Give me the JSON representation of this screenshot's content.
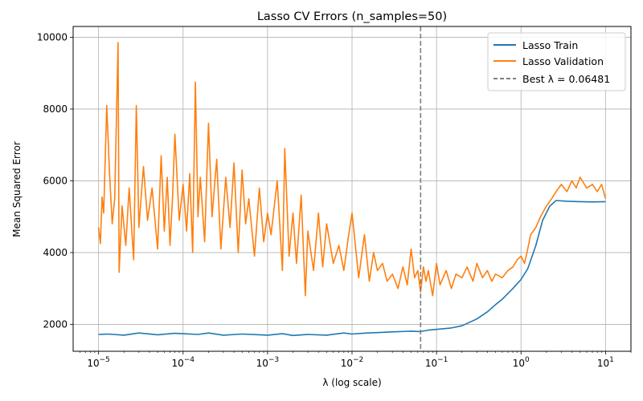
{
  "chart_data": {
    "type": "line",
    "title": "Lasso CV Errors (n_samples=50)",
    "xlabel": "λ (log scale)",
    "ylabel": "Mean Squared Error",
    "xscale": "log",
    "xlim": [
      5e-06,
      20
    ],
    "ylim": [
      1250,
      10300
    ],
    "grid": true,
    "legend_position": "top-right",
    "x_ticks": [
      {
        "value": 1e-05,
        "base": "10",
        "exp": "−5"
      },
      {
        "value": 0.0001,
        "base": "10",
        "exp": "−4"
      },
      {
        "value": 0.001,
        "base": "10",
        "exp": "−3"
      },
      {
        "value": 0.01,
        "base": "10",
        "exp": "−2"
      },
      {
        "value": 0.1,
        "base": "10",
        "exp": "−1"
      },
      {
        "value": 1,
        "base": "10",
        "exp": "0"
      },
      {
        "value": 10,
        "base": "10",
        "exp": "1"
      }
    ],
    "y_ticks": [
      {
        "value": 2000,
        "label": "2000"
      },
      {
        "value": 4000,
        "label": "4000"
      },
      {
        "value": 6000,
        "label": "6000"
      },
      {
        "value": 8000,
        "label": "8000"
      },
      {
        "value": 10000,
        "label": "10000"
      }
    ],
    "best_lambda": {
      "value": 0.06481,
      "label": "Best λ = 0.06481",
      "color": "#7f7f7f"
    },
    "series": [
      {
        "name": "Lasso Train",
        "color": "#1f77b4",
        "points": [
          [
            1e-05,
            1720
          ],
          [
            1.3e-05,
            1730
          ],
          [
            2e-05,
            1700
          ],
          [
            3e-05,
            1760
          ],
          [
            5e-05,
            1710
          ],
          [
            8e-05,
            1750
          ],
          [
            0.0001,
            1740
          ],
          [
            0.00015,
            1720
          ],
          [
            0.0002,
            1760
          ],
          [
            0.0003,
            1700
          ],
          [
            0.0005,
            1730
          ],
          [
            0.0008,
            1710
          ],
          [
            0.001,
            1700
          ],
          [
            0.0015,
            1740
          ],
          [
            0.002,
            1690
          ],
          [
            0.003,
            1720
          ],
          [
            0.005,
            1700
          ],
          [
            0.008,
            1760
          ],
          [
            0.01,
            1730
          ],
          [
            0.015,
            1760
          ],
          [
            0.02,
            1770
          ],
          [
            0.03,
            1790
          ],
          [
            0.05,
            1810
          ],
          [
            0.065,
            1800
          ],
          [
            0.08,
            1840
          ],
          [
            0.1,
            1860
          ],
          [
            0.15,
            1900
          ],
          [
            0.2,
            1960
          ],
          [
            0.3,
            2150
          ],
          [
            0.4,
            2350
          ],
          [
            0.5,
            2550
          ],
          [
            0.6,
            2700
          ],
          [
            0.8,
            3000
          ],
          [
            1.0,
            3250
          ],
          [
            1.2,
            3550
          ],
          [
            1.5,
            4200
          ],
          [
            1.8,
            4900
          ],
          [
            2.2,
            5300
          ],
          [
            2.6,
            5450
          ],
          [
            3.5,
            5430
          ],
          [
            5,
            5420
          ],
          [
            7,
            5410
          ],
          [
            10,
            5420
          ]
        ]
      },
      {
        "name": "Lasso Validation",
        "color": "#ff7f0e",
        "points": [
          [
            1e-05,
            4700
          ],
          [
            1.05e-05,
            4250
          ],
          [
            1.1e-05,
            5550
          ],
          [
            1.15e-05,
            5100
          ],
          [
            1.25e-05,
            8100
          ],
          [
            1.35e-05,
            6200
          ],
          [
            1.45e-05,
            4800
          ],
          [
            1.55e-05,
            5500
          ],
          [
            1.7e-05,
            9850
          ],
          [
            1.75e-05,
            3450
          ],
          [
            1.9e-05,
            5300
          ],
          [
            2.1e-05,
            4200
          ],
          [
            2.3e-05,
            5800
          ],
          [
            2.6e-05,
            3800
          ],
          [
            2.8e-05,
            8100
          ],
          [
            3e-05,
            4700
          ],
          [
            3.4e-05,
            6400
          ],
          [
            3.8e-05,
            4900
          ],
          [
            4.3e-05,
            5800
          ],
          [
            5e-05,
            4100
          ],
          [
            5.5e-05,
            6700
          ],
          [
            6e-05,
            4600
          ],
          [
            6.5e-05,
            6100
          ],
          [
            7e-05,
            4200
          ],
          [
            7.5e-05,
            5500
          ],
          [
            8e-05,
            7300
          ],
          [
            9e-05,
            4900
          ],
          [
            0.0001,
            5900
          ],
          [
            0.00011,
            4600
          ],
          [
            0.00012,
            6200
          ],
          [
            0.00013,
            4000
          ],
          [
            0.00014,
            8750
          ],
          [
            0.00015,
            5000
          ],
          [
            0.00016,
            6100
          ],
          [
            0.00018,
            4300
          ],
          [
            0.0002,
            7600
          ],
          [
            0.00022,
            5000
          ],
          [
            0.00025,
            6600
          ],
          [
            0.00028,
            4100
          ],
          [
            0.00032,
            6100
          ],
          [
            0.00036,
            4700
          ],
          [
            0.0004,
            6500
          ],
          [
            0.00045,
            4000
          ],
          [
            0.0005,
            6300
          ],
          [
            0.00055,
            4800
          ],
          [
            0.0006,
            5500
          ],
          [
            0.0007,
            3900
          ],
          [
            0.0008,
            5800
          ],
          [
            0.0009,
            4300
          ],
          [
            0.001,
            5100
          ],
          [
            0.0011,
            4500
          ],
          [
            0.0013,
            6000
          ],
          [
            0.0015,
            3500
          ],
          [
            0.0016,
            6900
          ],
          [
            0.0018,
            3900
          ],
          [
            0.002,
            5100
          ],
          [
            0.0022,
            3700
          ],
          [
            0.0025,
            5600
          ],
          [
            0.0028,
            2800
          ],
          [
            0.003,
            4600
          ],
          [
            0.0035,
            3500
          ],
          [
            0.004,
            5100
          ],
          [
            0.0045,
            3600
          ],
          [
            0.005,
            4800
          ],
          [
            0.006,
            3700
          ],
          [
            0.007,
            4200
          ],
          [
            0.008,
            3500
          ],
          [
            0.009,
            4400
          ],
          [
            0.01,
            5100
          ],
          [
            0.012,
            3300
          ],
          [
            0.014,
            4500
          ],
          [
            0.016,
            3200
          ],
          [
            0.018,
            4000
          ],
          [
            0.02,
            3500
          ],
          [
            0.023,
            3700
          ],
          [
            0.026,
            3200
          ],
          [
            0.03,
            3400
          ],
          [
            0.035,
            3000
          ],
          [
            0.04,
            3600
          ],
          [
            0.045,
            3100
          ],
          [
            0.05,
            4100
          ],
          [
            0.055,
            3300
          ],
          [
            0.06,
            3500
          ],
          [
            0.0648,
            2900
          ],
          [
            0.07,
            3600
          ],
          [
            0.075,
            3200
          ],
          [
            0.08,
            3500
          ],
          [
            0.09,
            2800
          ],
          [
            0.1,
            3700
          ],
          [
            0.11,
            3100
          ],
          [
            0.13,
            3500
          ],
          [
            0.15,
            3000
          ],
          [
            0.17,
            3400
          ],
          [
            0.2,
            3300
          ],
          [
            0.23,
            3600
          ],
          [
            0.27,
            3200
          ],
          [
            0.3,
            3700
          ],
          [
            0.35,
            3300
          ],
          [
            0.4,
            3500
          ],
          [
            0.45,
            3200
          ],
          [
            0.5,
            3400
          ],
          [
            0.6,
            3300
          ],
          [
            0.7,
            3500
          ],
          [
            0.8,
            3600
          ],
          [
            0.9,
            3800
          ],
          [
            1.0,
            3900
          ],
          [
            1.1,
            3700
          ],
          [
            1.2,
            4100
          ],
          [
            1.3,
            4500
          ],
          [
            1.5,
            4700
          ],
          [
            1.7,
            5000
          ],
          [
            2.0,
            5300
          ],
          [
            2.3,
            5500
          ],
          [
            2.6,
            5700
          ],
          [
            3.0,
            5900
          ],
          [
            3.5,
            5700
          ],
          [
            4.0,
            6000
          ],
          [
            4.5,
            5800
          ],
          [
            5.0,
            6100
          ],
          [
            6.0,
            5800
          ],
          [
            7.0,
            5900
          ],
          [
            8.0,
            5700
          ],
          [
            9.0,
            5900
          ],
          [
            10,
            5500
          ]
        ]
      }
    ]
  }
}
